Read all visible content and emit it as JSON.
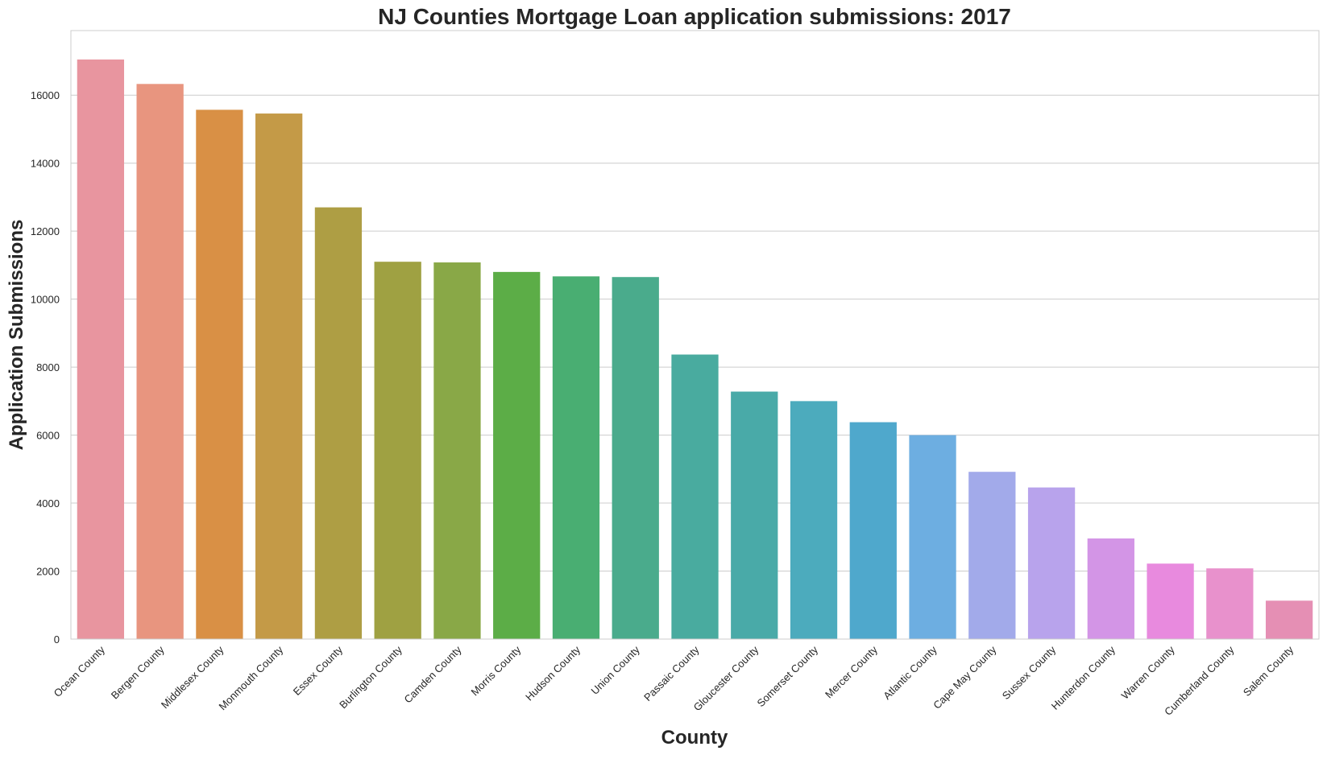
{
  "chart_data": {
    "type": "bar",
    "title": "NJ Counties Mortgage Loan application submissions: 2017",
    "xlabel": "County",
    "ylabel": "Application Submissions",
    "ylim": [
      0,
      17900
    ],
    "yticks": [
      0,
      2000,
      4000,
      6000,
      8000,
      10000,
      12000,
      14000,
      16000
    ],
    "grid": "horizontal",
    "categories": [
      "Ocean County",
      "Bergen County",
      "Middlesex County",
      "Monmouth County",
      "Essex County",
      "Burlington County",
      "Camden County",
      "Morris County",
      "Hudson County",
      "Union County",
      "Passaic County",
      "Gloucester County",
      "Somerset County",
      "Mercer County",
      "Atlantic County",
      "Cape May County",
      "Sussex County",
      "Hunterdon County",
      "Warren County",
      "Cumberland County",
      "Salem County"
    ],
    "values": [
      17050,
      16330,
      15570,
      15460,
      12700,
      11100,
      11080,
      10800,
      10670,
      10650,
      8370,
      7280,
      7000,
      6380,
      6000,
      4920,
      4460,
      2960,
      2220,
      2080,
      1130
    ],
    "colors": [
      "#e8959f",
      "#e8957f",
      "#d99045",
      "#c49a47",
      "#ae9e44",
      "#9fa142",
      "#89a847",
      "#5cad47",
      "#49ae72",
      "#4aab8c",
      "#49ab9f",
      "#49aaa8",
      "#4cabbd",
      "#4fa8cc",
      "#6daee1",
      "#a2aaea",
      "#b8a3ec",
      "#d395e6",
      "#e88ade",
      "#e891cc",
      "#e58fb4"
    ]
  }
}
